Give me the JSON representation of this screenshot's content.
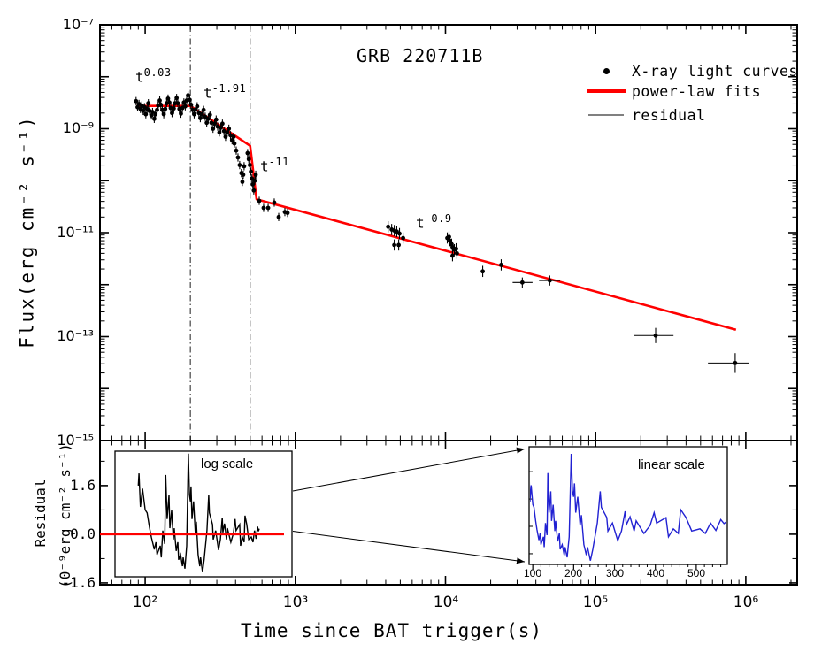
{
  "page": {
    "title": "GRB 220711B"
  },
  "main_plot": {
    "title": "GRB 220711B",
    "xlabel": "Time since BAT trigger(s)",
    "ylabel": "Flux(erg cm⁻² s⁻¹)",
    "x_tick_labels": [
      "10²",
      "10³",
      "10⁴",
      "10⁵",
      "10⁶"
    ],
    "y_tick_labels": [
      "10⁻⁷",
      "10⁻⁹",
      "10⁻¹¹",
      "10⁻¹³",
      "10⁻¹⁵"
    ],
    "legend": {
      "items": [
        {
          "label": "X-ray light curves",
          "marker": "dot",
          "color": "#000000"
        },
        {
          "label": "power-law fits",
          "marker": "line",
          "color": "#ff0000"
        },
        {
          "label": "residual",
          "marker": "line",
          "color": "#808080"
        }
      ]
    },
    "annotations": [
      {
        "base": "t",
        "exp": "0.03"
      },
      {
        "base": "t",
        "exp": "-1.91"
      },
      {
        "base": "t",
        "exp": "-11"
      },
      {
        "base": "t",
        "exp": "-0.9"
      }
    ]
  },
  "residual_plot": {
    "ylabel_line1": "Residual",
    "ylabel_line2": "(0⁻⁹erg cm⁻² s⁻¹)",
    "y_tick_labels": [
      "1.6",
      "0.0",
      "-1.6"
    ],
    "insets": {
      "log_label": "log scale",
      "linear_label": "linear scale",
      "linear_tick_labels": [
        "100",
        "200",
        "300",
        "400",
        "500"
      ]
    }
  },
  "chart_data": {
    "type": "scatter",
    "title": "GRB 220711B",
    "xlabel": "Time since BAT trigger(s)",
    "ylabel": "Flux(erg cm⁻² s⁻¹)",
    "x_scale": "log",
    "y_scale": "log",
    "xlim": [
      50,
      2200000
    ],
    "ylim": [
      1e-15,
      1e-07
    ],
    "x_major_ticks": [
      100,
      1000,
      10000,
      100000,
      1000000
    ],
    "y_major_tick_exponents": [
      -7,
      -9,
      -11,
      -13,
      -15
    ],
    "vlines": [
      200,
      500
    ],
    "legend_position": "upper right",
    "grid": false,
    "colors": {
      "data": "#000000",
      "fit": "#ff0000",
      "vline": "#444444",
      "residual_log": "#000000",
      "residual_linear": "#2121d2",
      "zero_line": "#ff0000"
    },
    "segment_slopes": [
      0.03,
      -1.91,
      -11,
      -0.9
    ],
    "series": [
      {
        "name": "X-ray light curves",
        "type": "scatter",
        "color": "#000000",
        "points": [
          [
            87,
            3.4e-09
          ],
          [
            89,
            2.6e-09
          ],
          [
            91,
            3e-09
          ],
          [
            93,
            2.4e-09
          ],
          [
            95,
            2.8e-09
          ],
          [
            97,
            2.2e-09
          ],
          [
            99,
            2.6e-09
          ],
          [
            101,
            1.9e-09
          ],
          [
            103,
            2.4e-09
          ],
          [
            105,
            3.1e-09
          ],
          [
            107,
            2.2e-09
          ],
          [
            110,
            1.8e-09
          ],
          [
            112,
            2.1e-09
          ],
          [
            115,
            1.55e-09
          ],
          [
            117,
            1.9e-09
          ],
          [
            120,
            2.3e-09
          ],
          [
            122,
            2.8e-09
          ],
          [
            125,
            3.5e-09
          ],
          [
            127,
            2.9e-09
          ],
          [
            130,
            2.3e-09
          ],
          [
            133,
            1.9e-09
          ],
          [
            136,
            2.4e-09
          ],
          [
            139,
            3.1e-09
          ],
          [
            142,
            3.8e-09
          ],
          [
            145,
            3.2e-09
          ],
          [
            148,
            2.5e-09
          ],
          [
            151,
            2e-09
          ],
          [
            155,
            2.45e-09
          ],
          [
            158,
            3.1e-09
          ],
          [
            162,
            3.9e-09
          ],
          [
            165,
            3.1e-09
          ],
          [
            169,
            2.4e-09
          ],
          [
            173,
            1.95e-09
          ],
          [
            177,
            2.5e-09
          ],
          [
            181,
            3.2e-09
          ],
          [
            185,
            2.7e-09
          ],
          [
            189,
            3.5e-09
          ],
          [
            193,
            4.4e-09
          ],
          [
            198,
            3.6e-09
          ],
          [
            202,
            2.9e-09
          ],
          [
            207,
            2.3e-09
          ],
          [
            212,
            1.9e-09
          ],
          [
            217,
            2.35e-09
          ],
          [
            222,
            2.7e-09
          ],
          [
            228,
            2e-09
          ],
          [
            233,
            1.6e-09
          ],
          [
            239,
            1.9e-09
          ],
          [
            245,
            2.3e-09
          ],
          [
            251,
            1.7e-09
          ],
          [
            257,
            1.3e-09
          ],
          [
            263,
            1.55e-09
          ],
          [
            270,
            1.85e-09
          ],
          [
            276,
            1.3e-09
          ],
          [
            283,
            1e-09
          ],
          [
            290,
            1.25e-09
          ],
          [
            297,
            1.5e-09
          ],
          [
            304,
            1.1e-09
          ],
          [
            312,
            8.5e-10
          ],
          [
            319,
            1.05e-09
          ],
          [
            327,
            1.25e-09
          ],
          [
            335,
            9e-10
          ],
          [
            343,
            7e-10
          ],
          [
            352,
            8.5e-10
          ],
          [
            361,
            1e-09
          ],
          [
            370,
            7.5e-10
          ],
          [
            379,
            6e-10
          ],
          [
            388,
            7e-10
          ],
          [
            393,
            5.2e-10
          ],
          [
            404,
            3.8e-10
          ],
          [
            415,
            2.8e-10
          ],
          [
            426,
            2e-10
          ],
          [
            437,
            1.4e-10
          ],
          [
            444,
            9.5e-11
          ],
          [
            450,
            1.3e-10
          ],
          [
            456,
            1.9e-10
          ],
          [
            481,
            3.4e-10
          ],
          [
            490,
            2.6e-10
          ],
          [
            498,
            2e-10
          ],
          [
            506,
            1.5e-10
          ],
          [
            514,
            1.1e-10
          ],
          [
            521,
            8.5e-11
          ],
          [
            529,
            6.5e-11
          ],
          [
            537,
            1e-10
          ],
          [
            545,
            1.3e-10
          ],
          [
            575,
            4.1e-11
          ],
          [
            615,
            3e-11
          ],
          [
            659,
            3e-11
          ],
          [
            724,
            3.8e-11
          ],
          [
            775,
            2e-11
          ],
          [
            852,
            2.5e-11
          ],
          [
            888,
            2.4e-11
          ],
          [
            4150,
            1.3e-11
          ],
          [
            4380,
            1.15e-11
          ],
          [
            4560,
            1.1e-11
          ],
          [
            4740,
            1.05e-11
          ],
          [
            4940,
            9.6e-12
          ],
          [
            5220,
            7.9e-12
          ],
          [
            4560,
            5.8e-12
          ],
          [
            4880,
            5.8e-12
          ],
          [
            10280,
            7.9e-12
          ],
          [
            10560,
            8.3e-12
          ],
          [
            10690,
            7e-12
          ],
          [
            10990,
            6e-12
          ],
          [
            11140,
            5.3e-12
          ],
          [
            11460,
            4.7e-12
          ],
          [
            11780,
            4.9e-12
          ],
          [
            11920,
            4e-12
          ],
          [
            11140,
            3.6e-12
          ],
          [
            17700,
            1.8e-12
          ],
          [
            23500,
            2.4e-12
          ]
        ]
      },
      {
        "name": "power-law fits",
        "type": "line",
        "color": "#ff0000",
        "points": [
          [
            88,
            2.75e-09
          ],
          [
            200,
            2.75e-09
          ],
          [
            500,
            4.7e-10
          ],
          [
            552,
            4.4e-11
          ],
          [
            860000,
            1.35e-13
          ]
        ]
      }
    ],
    "points_with_xerr": [
      [
        32500,
        1.1e-12,
        28000,
        38000,
        1.25
      ],
      [
        49500,
        1.2e-12,
        42000,
        58000,
        1.25
      ],
      [
        251000,
        1.05e-13,
        180000,
        330000,
        1.4
      ],
      [
        850000,
        3.1e-14,
        560000,
        1050000,
        1.55
      ]
    ],
    "residual": {
      "name": "residual",
      "ylim": [
        -1.66,
        3.08
      ],
      "yticks": [
        1.6,
        0.0,
        -1.6
      ],
      "yminors": [
        2.4,
        0.8,
        -0.8
      ],
      "linear_inset_xlim": [
        91,
        576
      ],
      "linear_inset_ylim": [
        -1.39,
        2.91
      ],
      "linear_inset_xticks": [
        100,
        200,
        300,
        400,
        500
      ],
      "series": [
        [
          90,
          1.6
        ],
        [
          91,
          2.0
        ],
        [
          93,
          0.9
        ],
        [
          96,
          1.5
        ],
        [
          100,
          0.8
        ],
        [
          103,
          0.7
        ],
        [
          107,
          0.2
        ],
        [
          110,
          -0.1
        ],
        [
          115,
          -0.5
        ],
        [
          118,
          -0.26
        ],
        [
          120,
          -0.67
        ],
        [
          126,
          -0.38
        ],
        [
          128,
          -0.76
        ],
        [
          131,
          0.12
        ],
        [
          135,
          -0.32
        ],
        [
          137,
          1.95
        ],
        [
          140,
          0.5
        ],
        [
          144,
          1.28
        ],
        [
          146,
          0.2
        ],
        [
          150,
          0.79
        ],
        [
          154,
          -0.17
        ],
        [
          156,
          0.2
        ],
        [
          161,
          -0.55
        ],
        [
          165,
          -0.26
        ],
        [
          167,
          -0.84
        ],
        [
          172,
          -0.67
        ],
        [
          177,
          -1.05
        ],
        [
          179,
          -0.76
        ],
        [
          184,
          -1.13
        ],
        [
          189,
          -0.38
        ],
        [
          194,
          2.65
        ],
        [
          197,
          1.3
        ],
        [
          200,
          1.08
        ],
        [
          202,
          1.57
        ],
        [
          205,
          0.5
        ],
        [
          210,
          1.08
        ],
        [
          216,
          0.03
        ],
        [
          219,
          0.41
        ],
        [
          225,
          -0.67
        ],
        [
          231,
          -1.05
        ],
        [
          234,
          -0.76
        ],
        [
          241,
          -1.25
        ],
        [
          247,
          -0.84
        ],
        [
          258,
          0.12
        ],
        [
          265,
          1.28
        ],
        [
          268,
          0.7
        ],
        [
          281,
          0.32
        ],
        [
          284,
          -0.17
        ],
        [
          295,
          0.12
        ],
        [
          308,
          -0.52
        ],
        [
          317,
          -0.17
        ],
        [
          326,
          0.55
        ],
        [
          329,
          0.06
        ],
        [
          338,
          0.35
        ],
        [
          348,
          -0.17
        ],
        [
          353,
          0.2
        ],
        [
          372,
          -0.26
        ],
        [
          387,
          0.03
        ],
        [
          397,
          0.5
        ],
        [
          403,
          0.12
        ],
        [
          426,
          0.32
        ],
        [
          432,
          -0.38
        ],
        [
          444,
          -0.09
        ],
        [
          456,
          -0.26
        ],
        [
          462,
          0.61
        ],
        [
          475,
          0.32
        ],
        [
          489,
          -0.17
        ],
        [
          509,
          -0.09
        ],
        [
          522,
          -0.26
        ],
        [
          535,
          0.12
        ],
        [
          548,
          -0.15
        ],
        [
          560,
          0.25
        ],
        [
          568,
          0.1
        ],
        [
          575,
          0.18
        ]
      ]
    }
  }
}
